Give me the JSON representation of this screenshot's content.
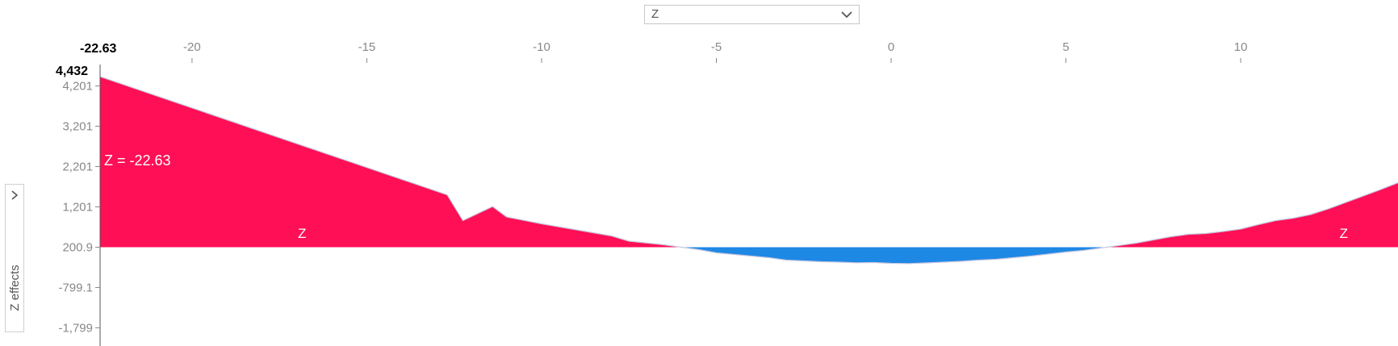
{
  "selector": {
    "value": "Z",
    "options": [
      "Z"
    ]
  },
  "panel": {
    "ylabel": "Z effects"
  },
  "colors": {
    "positive": "#ff0f55",
    "negative": "#1e88e5",
    "axis": "#888888",
    "line": "#c7c7e0"
  },
  "chart_data": {
    "type": "area",
    "title": "",
    "xlabel": "",
    "ylabel": "Z effects",
    "xlim": [
      -22.63,
      14.5
    ],
    "ylim": [
      -2250,
      4432
    ],
    "baseline": 200.9,
    "x_ticks": [
      "-20",
      "-15",
      "-10",
      "-5",
      "0",
      "5",
      "10"
    ],
    "x_tick_values": [
      -20,
      -15,
      -10,
      -5,
      0,
      5,
      10
    ],
    "y_ticks": [
      "4,201",
      "3,201",
      "2,201",
      "1,201",
      "200.9",
      "-799.1",
      "-1,799"
    ],
    "y_tick_values": [
      4201,
      3201,
      2201,
      1201,
      200.9,
      -799.1,
      -1799
    ],
    "x_current_label": "-22.63",
    "y_max_label": "4,432",
    "value_label": "Z = -22.63",
    "area_labels": [
      "Z",
      "Z"
    ],
    "area_label_x": [
      -16.85,
      12.95
    ],
    "area_label_y": 555,
    "x": [
      -22.63,
      -12.7,
      -12.25,
      -11.4,
      -11.0,
      -10.0,
      -9.0,
      -8.0,
      -7.5,
      -6.5,
      -5.5,
      -5.0,
      -4.5,
      -4.0,
      -3.5,
      -3.0,
      -2.5,
      -2.0,
      -1.5,
      -1.0,
      -0.5,
      0.0,
      0.5,
      1.0,
      1.5,
      2.0,
      2.5,
      3.0,
      3.5,
      4.0,
      4.5,
      5.0,
      5.5,
      6.0,
      6.5,
      7.0,
      7.5,
      8.0,
      8.5,
      9.0,
      9.5,
      10.0,
      10.5,
      11.0,
      11.5,
      12.0,
      12.5,
      13.0,
      13.5,
      14.0,
      14.5
    ],
    "y": [
      4432,
      1500,
      860,
      1210,
      950,
      780,
      630,
      480,
      350,
      260,
      140,
      60,
      20,
      -20,
      -60,
      -120,
      -140,
      -160,
      -170,
      -185,
      -180,
      -200,
      -205,
      -190,
      -170,
      -150,
      -120,
      -100,
      -60,
      -20,
      30,
      80,
      120,
      180,
      240,
      300,
      380,
      460,
      520,
      540,
      590,
      650,
      760,
      860,
      920,
      1010,
      1150,
      1310,
      1470,
      1630,
      1800
    ]
  }
}
